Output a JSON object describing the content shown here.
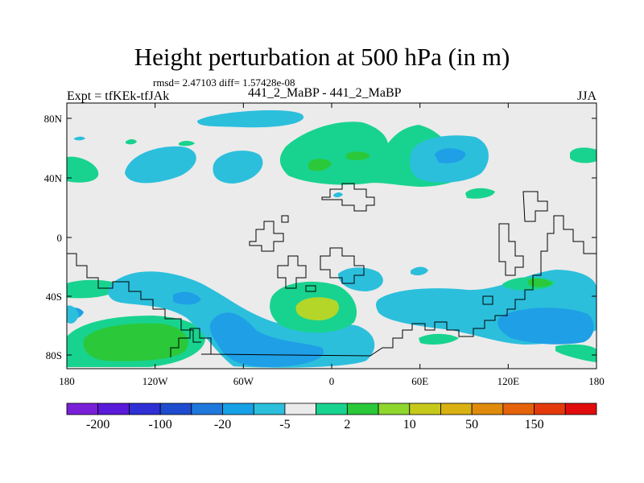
{
  "title": "Height perturbation at 500 hPa (in m)",
  "stats": "rmsd= 2.47103 diff= 1.57428e-08",
  "left_string": "Expt = tfKEk-tfJAk",
  "center_string": "441_2_MaBP - 441_2_MaBP",
  "right_string": "JJA",
  "lat_ticks": [
    "80N",
    "40N",
    "0",
    "40S",
    "80S"
  ],
  "lon_ticks": [
    "180",
    "120W",
    "60W",
    "0",
    "60E",
    "120E",
    "180"
  ],
  "colorbar": {
    "colors": [
      "#7a1fd8",
      "#5a1ad9",
      "#2f2fd6",
      "#1f4ccf",
      "#1f78dc",
      "#16a0e6",
      "#2bbfdc",
      "#ebebeb",
      "#18d38f",
      "#2bc83a",
      "#8fd62d",
      "#c7c91a",
      "#d9b112",
      "#e08b0c",
      "#e6620a",
      "#e43a0b",
      "#e10d0d"
    ],
    "labels": [
      "-200",
      "-100",
      "-20",
      "-5",
      "2",
      "10",
      "50",
      "150"
    ]
  },
  "map_colors": {
    "background": "#ebebeb",
    "cyan": "#2bbfdc",
    "blue": "#1f9fe6",
    "green": "#18d38f",
    "lime": "#2bc83a",
    "yellowgreen": "#b4d628"
  }
}
